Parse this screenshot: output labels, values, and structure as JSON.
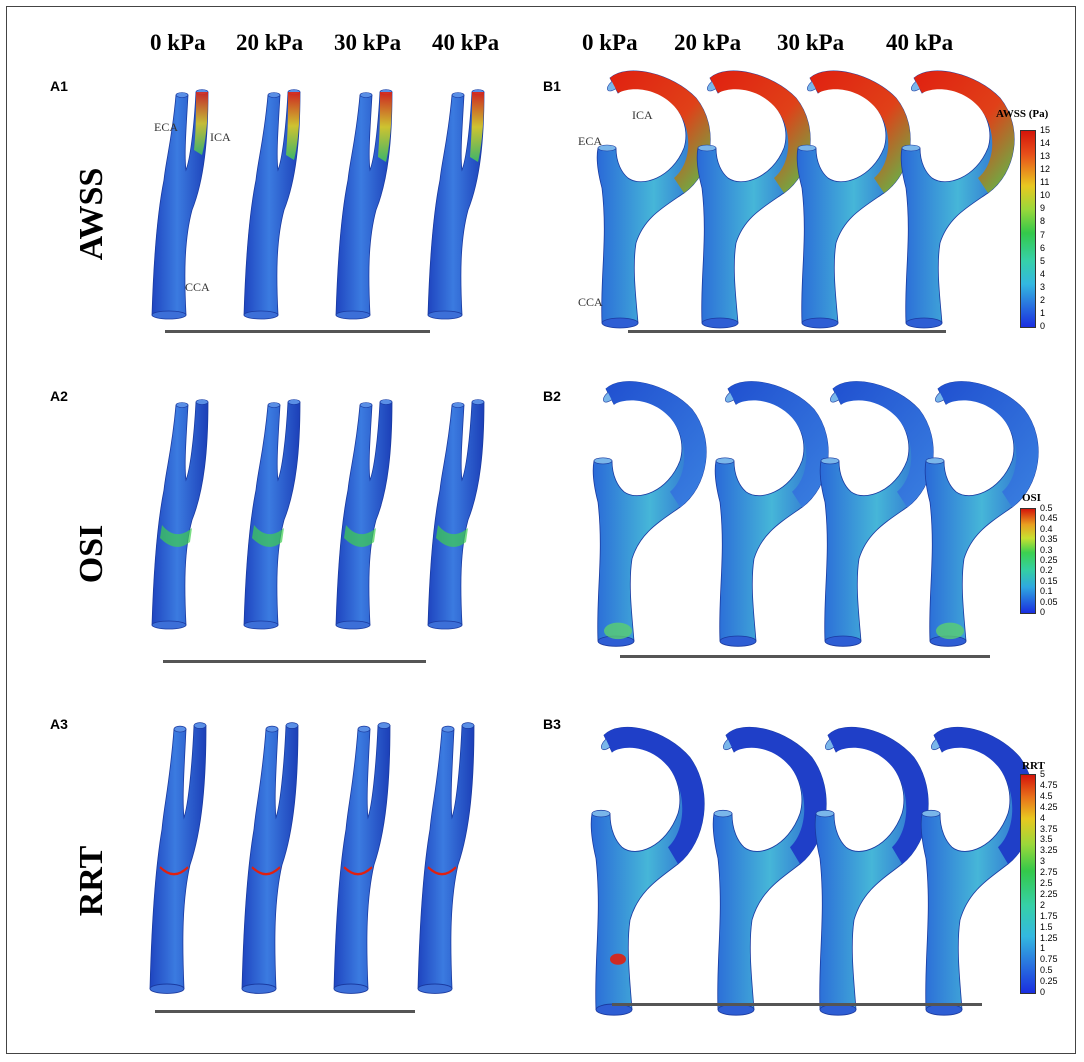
{
  "column_headers_left": [
    "0 kPa",
    "20 kPa",
    "30 kPa",
    "40 kPa"
  ],
  "column_headers_right": [
    "0 kPa",
    "20 kPa",
    "30 kPa",
    "40 kPa"
  ],
  "rows": [
    {
      "title": "AWSS",
      "left_label": "A1",
      "right_label": "B1"
    },
    {
      "title": "OSI",
      "left_label": "A2",
      "right_label": "B2"
    },
    {
      "title": "RRT",
      "left_label": "A3",
      "right_label": "B3"
    }
  ],
  "vessel_labels": {
    "left_eca": "ECA",
    "left_ica": "ICA",
    "left_cca": "CCA",
    "right_ica": "ICA",
    "right_eca": "ECA",
    "right_cca": "CCA"
  },
  "legends": [
    {
      "title": "AWSS (Pa)",
      "ticks": [
        "15",
        "14",
        "13",
        "12",
        "11",
        "10",
        "9",
        "8",
        "7",
        "6",
        "5",
        "4",
        "3",
        "2",
        "1",
        "0"
      ]
    },
    {
      "title": "OSI",
      "ticks": [
        "0.5",
        "0.45",
        "0.4",
        "0.35",
        "0.3",
        "0.25",
        "0.2",
        "0.15",
        "0.1",
        "0.05",
        "0"
      ]
    },
    {
      "title": "RRT",
      "ticks": [
        "5",
        "4.75",
        "4.5",
        "4.25",
        "4",
        "3.75",
        "3.5",
        "3.25",
        "3",
        "2.75",
        "2.5",
        "2.25",
        "2",
        "1.75",
        "1.5",
        "1.25",
        "1",
        "0.75",
        "0.5",
        "0.25",
        "0"
      ]
    }
  ],
  "colors": {
    "vessel_base": "#2f5fd6",
    "vessel_light": "#3aa0d8",
    "high": "#e02010",
    "mid": "#3fcf50",
    "yellow": "#f0e020"
  }
}
